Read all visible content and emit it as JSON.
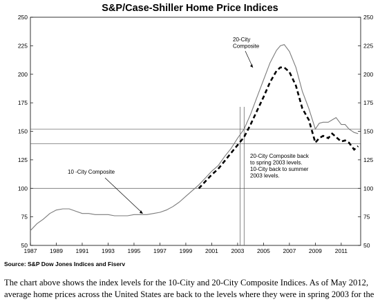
{
  "chart_data": {
    "type": "line",
    "title": "S&P/Case-Shiller Home Price Indices",
    "xlabel": "",
    "ylabel": "",
    "xlim": [
      1987,
      2012.5
    ],
    "ylim": [
      50,
      250
    ],
    "yticks": [
      50,
      75,
      100,
      125,
      150,
      175,
      200,
      225,
      250
    ],
    "xticks": [
      "1987",
      "1989",
      "1991",
      "1993",
      "1995",
      "1997",
      "1999",
      "2001",
      "2003",
      "2005",
      "2007",
      "2009",
      "2011"
    ],
    "grid": "horizontal reference lines at 100, 139, 152",
    "legend": "none",
    "series": [
      {
        "name": "10 -City Composite",
        "style": "thin gray line",
        "x": [
          1987.0,
          1987.5,
          1988.0,
          1988.5,
          1989.0,
          1989.5,
          1990.0,
          1990.5,
          1991.0,
          1991.5,
          1992.0,
          1992.5,
          1993.0,
          1993.5,
          1994.0,
          1994.5,
          1995.0,
          1995.5,
          1996.0,
          1996.5,
          1997.0,
          1997.5,
          1998.0,
          1998.5,
          1999.0,
          1999.5,
          2000.0,
          2000.5,
          2001.0,
          2001.5,
          2002.0,
          2002.5,
          2003.0,
          2003.5,
          2004.0,
          2004.5,
          2005.0,
          2005.5,
          2006.0,
          2006.3,
          2006.6,
          2007.0,
          2007.5,
          2008.0,
          2008.5,
          2009.0,
          2009.3,
          2009.6,
          2010.0,
          2010.3,
          2010.6,
          2011.0,
          2011.3,
          2011.6,
          2012.0,
          2012.3
        ],
        "values": [
          63,
          69,
          73,
          78,
          81,
          82,
          82,
          80,
          78,
          78,
          77,
          77,
          77,
          76,
          76,
          76,
          77,
          77,
          77,
          78,
          79,
          81,
          84,
          88,
          93,
          98,
          103,
          109,
          115,
          120,
          128,
          135,
          144,
          152,
          165,
          180,
          195,
          210,
          221,
          225,
          226,
          220,
          206,
          185,
          170,
          152,
          157,
          158,
          158,
          160,
          162,
          156,
          156,
          152,
          149,
          148
        ]
      },
      {
        "name": "20-City Composite",
        "style": "thick dashed black line",
        "x": [
          1987.0,
          1987.5,
          1988.0,
          1988.5,
          1989.0,
          1989.5,
          1990.0,
          1990.5,
          1991.0,
          1991.5,
          1992.0,
          1992.5,
          1993.0,
          1993.5,
          1994.0,
          1994.5,
          1995.0,
          1995.5,
          1996.0,
          1996.5,
          1997.0,
          1997.5,
          1998.0,
          1998.5,
          1999.0,
          1999.5,
          2000.0,
          2000.5,
          2001.0,
          2001.5,
          2002.0,
          2002.5,
          2003.0,
          2003.5,
          2004.0,
          2004.5,
          2005.0,
          2005.5,
          2006.0,
          2006.3,
          2006.6,
          2007.0,
          2007.5,
          2008.0,
          2008.5,
          2009.0,
          2009.3,
          2009.6,
          2010.0,
          2010.3,
          2010.6,
          2011.0,
          2011.3,
          2011.6,
          2012.0,
          2012.3
        ],
        "values": [
          null,
          null,
          null,
          null,
          null,
          null,
          null,
          null,
          null,
          null,
          null,
          null,
          null,
          null,
          null,
          null,
          null,
          null,
          null,
          null,
          null,
          null,
          null,
          null,
          null,
          null,
          100,
          106,
          112,
          117,
          124,
          131,
          138,
          145,
          156,
          168,
          180,
          193,
          203,
          206,
          206,
          202,
          190,
          170,
          160,
          140,
          144,
          146,
          144,
          148,
          145,
          141,
          142,
          140,
          134,
          137
        ]
      }
    ],
    "annotations": [
      {
        "text": "20-City\nComposite",
        "points_to": "20-City Composite"
      },
      {
        "text": "10 -City Composite",
        "points_to": "10 -City Composite"
      },
      {
        "text": "20-City Composite  back\nto spring 2003 levels.\n10-City back to summer\n2003 levels.",
        "points_to": "2003"
      }
    ],
    "reference_lines_y": [
      100,
      139,
      152
    ],
    "reference_lines_x": [
      2003.2,
      2003.5
    ],
    "source": "Source: S&P Dow Jones Indices and Fiserv"
  },
  "caption": {
    "line1": "The chart above shows the index levels for the 10-City and 20-City Composite Indices. As of May 2012,",
    "line2": "average home prices across the United States are back to the levels where they were in spring 2003 for the"
  },
  "colors": {
    "ten_city": "#7a7a7a",
    "twenty_city": "#000000",
    "reference": "#555555",
    "axis": "#000000"
  }
}
